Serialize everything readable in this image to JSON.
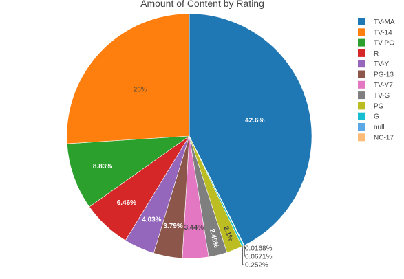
{
  "chart_data": {
    "type": "pie",
    "title": "Amount of Content by Rating",
    "legend_position": "right",
    "slices": [
      {
        "label": "TV-MA",
        "value": 42.6,
        "text": "42.6%",
        "color": "#1f77b4",
        "text_color": "#ffffff"
      },
      {
        "label": "NC-17",
        "value": 0.0168,
        "text": "0.0168%",
        "color": "#ffbb78",
        "text_color": "#444444"
      },
      {
        "label": "null",
        "value": 0.0671,
        "text": "0.0671%",
        "color": "#5aa9e6",
        "text_color": "#444444"
      },
      {
        "label": "G",
        "value": 0.252,
        "text": "0.252%",
        "color": "#17becf",
        "text_color": "#444444"
      },
      {
        "label": "PG",
        "value": 2.1,
        "text": "2.1%",
        "color": "#bcbd22",
        "text_color": "#444444"
      },
      {
        "label": "TV-G",
        "value": 2.45,
        "text": "2.45%",
        "color": "#7f7f7f",
        "text_color": "#ffffff"
      },
      {
        "label": "TV-Y7",
        "value": 3.44,
        "text": "3.44%",
        "color": "#e377c2",
        "text_color": "#444444"
      },
      {
        "label": "PG-13",
        "value": 3.79,
        "text": "3.79%",
        "color": "#8c564b",
        "text_color": "#ffffff"
      },
      {
        "label": "TV-Y",
        "value": 4.03,
        "text": "4.03%",
        "color": "#9467bd",
        "text_color": "#ffffff"
      },
      {
        "label": "R",
        "value": 6.46,
        "text": "6.46%",
        "color": "#d62728",
        "text_color": "#ffffff"
      },
      {
        "label": "TV-PG",
        "value": 8.83,
        "text": "8.83%",
        "color": "#2ca02c",
        "text_color": "#ffffff"
      },
      {
        "label": "TV-14",
        "value": 26.0,
        "text": "26%",
        "color": "#ff7f0e",
        "text_color": "#444444"
      }
    ],
    "legend": [
      {
        "label": "TV-MA",
        "color": "#1f77b4"
      },
      {
        "label": "TV-14",
        "color": "#ff7f0e"
      },
      {
        "label": "TV-PG",
        "color": "#2ca02c"
      },
      {
        "label": "R",
        "color": "#d62728"
      },
      {
        "label": "TV-Y",
        "color": "#9467bd"
      },
      {
        "label": "PG-13",
        "color": "#8c564b"
      },
      {
        "label": "TV-Y7",
        "color": "#e377c2"
      },
      {
        "label": "TV-G",
        "color": "#7f7f7f"
      },
      {
        "label": "PG",
        "color": "#bcbd22"
      },
      {
        "label": "G",
        "color": "#17becf"
      },
      {
        "label": "null",
        "color": "#5aa9e6"
      },
      {
        "label": "NC-17",
        "color": "#ffbb78"
      }
    ]
  }
}
